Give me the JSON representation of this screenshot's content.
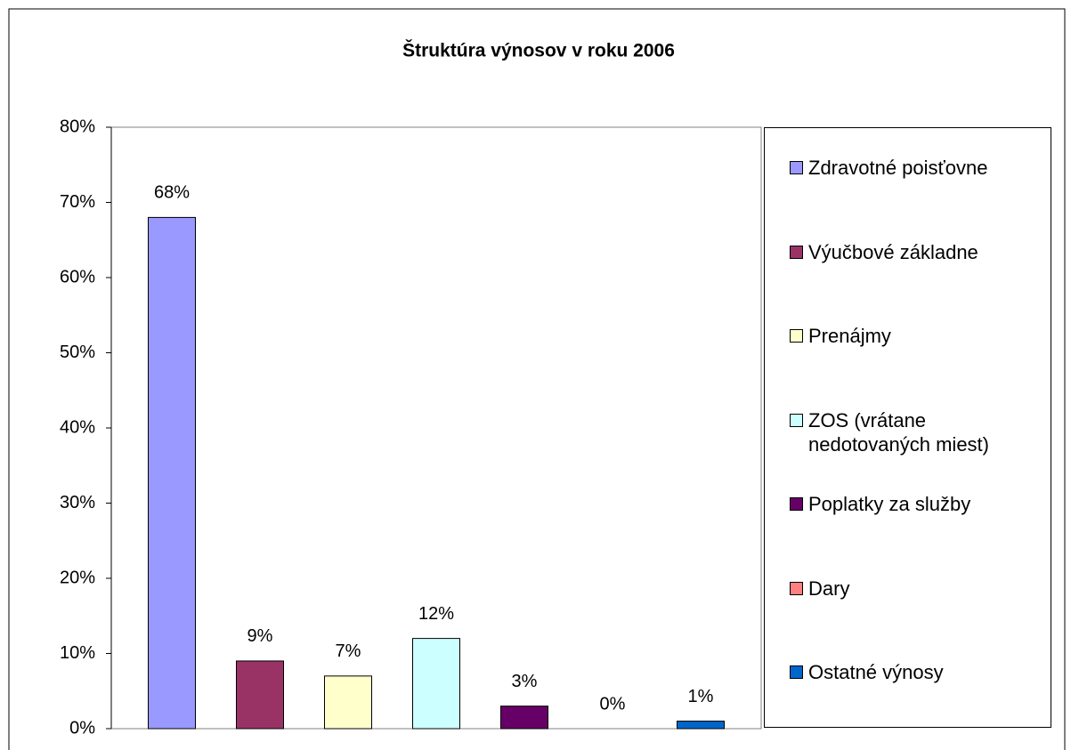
{
  "chart_data": {
    "type": "bar",
    "title": "Štruktúra výnosov v roku 2006",
    "categories": [
      null
    ],
    "series": [
      {
        "name": "Zdravotné poisťovne",
        "color": "#9999ff",
        "values": [
          68
        ],
        "value_labels": [
          "68%"
        ]
      },
      {
        "name": "Výučbové základne",
        "color": "#993366",
        "values": [
          9
        ],
        "value_labels": [
          "9%"
        ]
      },
      {
        "name": "Prenájmy",
        "color": "#ffffcc",
        "values": [
          7
        ],
        "value_labels": [
          "7%"
        ]
      },
      {
        "name": "ZOS (vrátane nedotovaných miest)",
        "color": "#ccffff",
        "values": [
          12
        ],
        "value_labels": [
          "12%"
        ]
      },
      {
        "name": "Poplatky za služby",
        "color": "#660066",
        "values": [
          3
        ],
        "value_labels": [
          "3%"
        ]
      },
      {
        "name": "Dary",
        "color": "#ff8080",
        "values": [
          0
        ],
        "value_labels": [
          "0%"
        ]
      },
      {
        "name": "Ostatné výnosy",
        "color": "#0066cc",
        "values": [
          1
        ],
        "value_labels": [
          "1%"
        ]
      }
    ],
    "ylim": [
      0,
      80
    ],
    "yticks": [
      {
        "value": 0,
        "label": "0%"
      },
      {
        "value": 10,
        "label": "10%"
      },
      {
        "value": 20,
        "label": "20%"
      },
      {
        "value": 30,
        "label": "30%"
      },
      {
        "value": 40,
        "label": "40%"
      },
      {
        "value": 50,
        "label": "50%"
      },
      {
        "value": 60,
        "label": "60%"
      },
      {
        "value": 70,
        "label": "70%"
      },
      {
        "value": 80,
        "label": "80%"
      }
    ],
    "grid": false,
    "legend": "right"
  }
}
